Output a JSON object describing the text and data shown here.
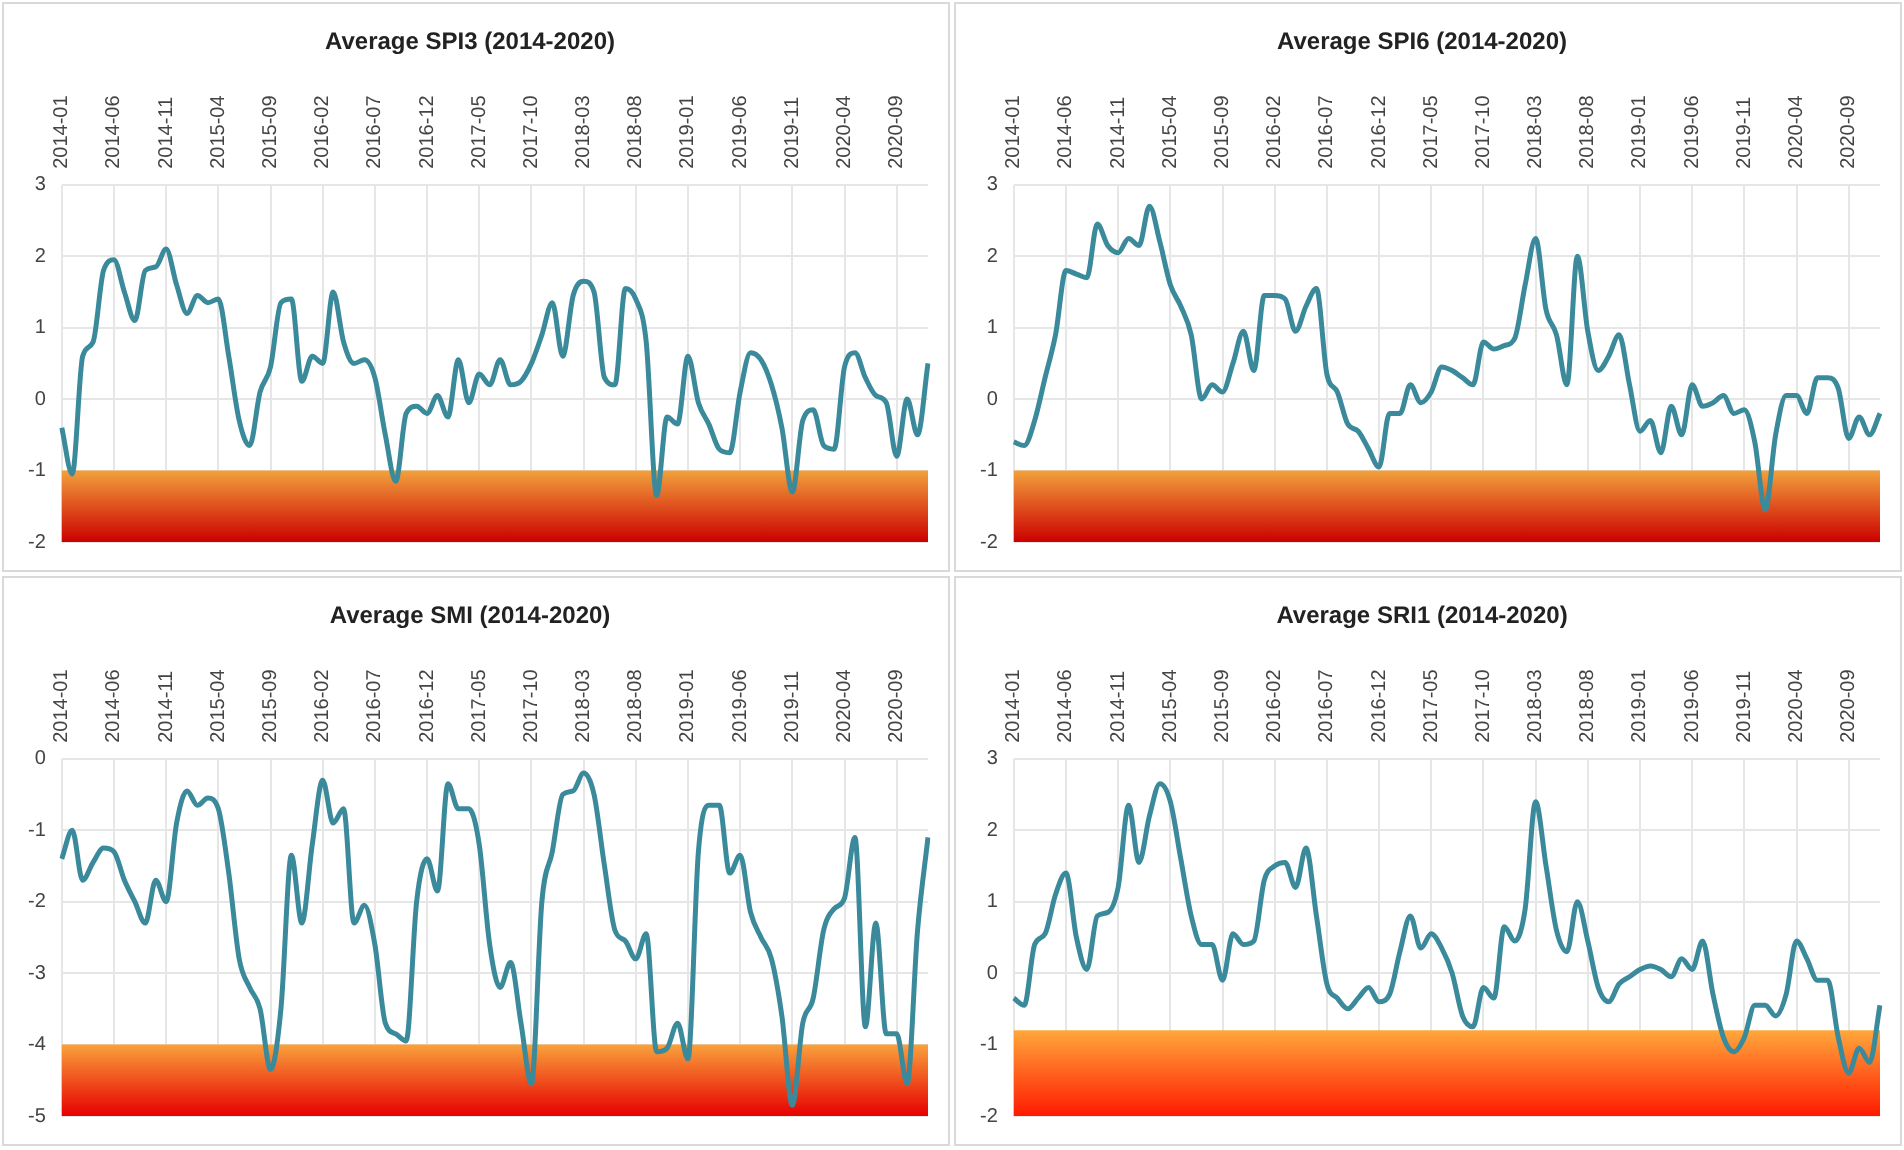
{
  "chart_data": [
    {
      "type": "line",
      "title": "Average SPI3 (2014-2020)",
      "categories": [
        "2014-01",
        null,
        null,
        null,
        null,
        "2014-06",
        null,
        null,
        null,
        null,
        "2014-11",
        null,
        null,
        null,
        null,
        "2015-04",
        null,
        null,
        null,
        null,
        "2015-09",
        null,
        null,
        null,
        null,
        "2016-02",
        null,
        null,
        null,
        null,
        "2016-07",
        null,
        null,
        null,
        null,
        "2016-12",
        null,
        null,
        null,
        null,
        "2017-05",
        null,
        null,
        null,
        null,
        "2017-10",
        null,
        null,
        null,
        null,
        "2018-03",
        null,
        null,
        null,
        null,
        "2018-08",
        null,
        null,
        null,
        null,
        "2019-01",
        null,
        null,
        null,
        null,
        "2019-06",
        null,
        null,
        null,
        null,
        "2019-11",
        null,
        null,
        null,
        null,
        "2020-04",
        null,
        null,
        null,
        null,
        "2020-09",
        null,
        null,
        null
      ],
      "series": [
        {
          "color": "#3b8a9c",
          "values": [
            -0.4,
            -1.05,
            0.6,
            0.8,
            1.8,
            1.95,
            1.5,
            1.1,
            1.8,
            1.85,
            2.1,
            1.6,
            1.2,
            1.45,
            1.35,
            1.4,
            0.6,
            -0.3,
            -0.65,
            0.1,
            0.45,
            1.35,
            1.4,
            0.25,
            0.6,
            0.5,
            1.5,
            0.8,
            0.5,
            0.55,
            0.3,
            -0.5,
            -1.15,
            -0.2,
            -0.1,
            -0.2,
            0.05,
            -0.25,
            0.55,
            -0.05,
            0.35,
            0.2,
            0.55,
            0.2,
            0.25,
            0.5,
            0.9,
            1.35,
            0.6,
            1.45,
            1.65,
            1.5,
            0.3,
            0.2,
            1.55,
            1.4,
            0.8,
            -1.35,
            -0.25,
            -0.35,
            0.6,
            -0.05,
            -0.35,
            -0.7,
            -0.75,
            0.1,
            0.65,
            0.55,
            0.2,
            -0.4,
            -1.3,
            -0.3,
            -0.15,
            -0.65,
            -0.7,
            0.45,
            0.65,
            0.3,
            0.05,
            -0.05,
            -0.8,
            0.0,
            -0.5,
            0.5
          ]
        }
      ],
      "ylim": [
        -2,
        3
      ],
      "yticks": [
        -2,
        -1,
        0,
        1,
        2,
        3
      ],
      "grid": true,
      "marker": "none",
      "bands": [
        {
          "axis": "y",
          "from": -2,
          "to": -1,
          "color": "#cc0000"
        }
      ]
    },
    {
      "type": "line",
      "title": "Average SPI6 (2014-2020)",
      "categories": [
        "2014-01",
        null,
        null,
        null,
        null,
        "2014-06",
        null,
        null,
        null,
        null,
        "2014-11",
        null,
        null,
        null,
        null,
        "2015-04",
        null,
        null,
        null,
        null,
        "2015-09",
        null,
        null,
        null,
        null,
        "2016-02",
        null,
        null,
        null,
        null,
        "2016-07",
        null,
        null,
        null,
        null,
        "2016-12",
        null,
        null,
        null,
        null,
        "2017-05",
        null,
        null,
        null,
        null,
        "2017-10",
        null,
        null,
        null,
        null,
        "2018-03",
        null,
        null,
        null,
        null,
        "2018-08",
        null,
        null,
        null,
        null,
        "2019-01",
        null,
        null,
        null,
        null,
        "2019-06",
        null,
        null,
        null,
        null,
        "2019-11",
        null,
        null,
        null,
        null,
        "2020-04",
        null,
        null,
        null,
        null,
        "2020-09",
        null,
        null,
        null
      ],
      "series": [
        {
          "color": "#3b8a9c",
          "values": [
            -0.6,
            -0.65,
            -0.3,
            0.3,
            0.9,
            1.8,
            1.75,
            1.7,
            2.45,
            2.15,
            2.05,
            2.25,
            2.15,
            2.7,
            2.2,
            1.6,
            1.3,
            0.9,
            0.0,
            0.2,
            0.1,
            0.5,
            0.95,
            0.4,
            1.45,
            1.45,
            1.4,
            0.95,
            1.3,
            1.55,
            0.35,
            0.1,
            -0.35,
            -0.45,
            -0.7,
            -0.95,
            -0.2,
            -0.2,
            0.2,
            -0.05,
            0.1,
            0.45,
            0.4,
            0.3,
            0.2,
            0.8,
            0.7,
            0.75,
            0.85,
            1.6,
            2.25,
            1.25,
            0.9,
            0.2,
            2.0,
            0.95,
            0.4,
            0.6,
            0.9,
            0.2,
            -0.45,
            -0.3,
            -0.75,
            -0.1,
            -0.5,
            0.2,
            -0.1,
            -0.05,
            0.05,
            -0.2,
            -0.15,
            -0.6,
            -1.55,
            -0.5,
            0.05,
            0.05,
            -0.2,
            0.3,
            0.3,
            0.15,
            -0.55,
            -0.25,
            -0.5,
            -0.2
          ]
        }
      ],
      "ylim": [
        -2,
        3
      ],
      "yticks": [
        -2,
        -1,
        0,
        1,
        2,
        3
      ],
      "grid": true,
      "marker": "none",
      "bands": [
        {
          "axis": "y",
          "from": -2,
          "to": -1,
          "color": "#cc0000"
        }
      ]
    },
    {
      "type": "line",
      "title": "Average SMI (2014-2020)",
      "categories": [
        "2014-01",
        null,
        null,
        null,
        null,
        "2014-06",
        null,
        null,
        null,
        null,
        "2014-11",
        null,
        null,
        null,
        null,
        "2015-04",
        null,
        null,
        null,
        null,
        "2015-09",
        null,
        null,
        null,
        null,
        "2016-02",
        null,
        null,
        null,
        null,
        "2016-07",
        null,
        null,
        null,
        null,
        "2016-12",
        null,
        null,
        null,
        null,
        "2017-05",
        null,
        null,
        null,
        null,
        "2017-10",
        null,
        null,
        null,
        null,
        "2018-03",
        null,
        null,
        null,
        null,
        "2018-08",
        null,
        null,
        null,
        null,
        "2019-01",
        null,
        null,
        null,
        null,
        "2019-06",
        null,
        null,
        null,
        null,
        "2019-11",
        null,
        null,
        null,
        null,
        "2020-04",
        null,
        null,
        null,
        null,
        "2020-09",
        null,
        null,
        null
      ],
      "series": [
        {
          "color": "#3b8a9c",
          "values": [
            -1.4,
            -1.0,
            -1.7,
            -1.45,
            -1.25,
            -1.3,
            -1.7,
            -2.0,
            -2.3,
            -1.7,
            -2.0,
            -0.9,
            -0.45,
            -0.65,
            -0.55,
            -0.7,
            -1.6,
            -2.8,
            -3.2,
            -3.5,
            -4.35,
            -3.5,
            -1.35,
            -2.3,
            -1.2,
            -0.3,
            -0.9,
            -0.7,
            -2.3,
            -2.05,
            -2.6,
            -3.7,
            -3.85,
            -3.95,
            -2.0,
            -1.4,
            -1.85,
            -0.35,
            -0.7,
            -0.7,
            -1.2,
            -2.6,
            -3.2,
            -2.85,
            -3.7,
            -4.55,
            -2.0,
            -1.3,
            -0.5,
            -0.45,
            -0.2,
            -0.5,
            -1.5,
            -2.4,
            -2.55,
            -2.8,
            -2.45,
            -4.1,
            -4.05,
            -3.7,
            -4.2,
            -1.3,
            -0.65,
            -0.65,
            -1.6,
            -1.35,
            -2.15,
            -2.5,
            -2.8,
            -3.6,
            -4.85,
            -3.7,
            -3.35,
            -2.4,
            -2.1,
            -1.95,
            -1.1,
            -3.75,
            -2.3,
            -3.85,
            -3.85,
            -4.55,
            -2.4,
            -1.1
          ]
        }
      ],
      "ylim": [
        -5,
        0
      ],
      "yticks": [
        -5,
        -4,
        -3,
        -2,
        -1,
        0
      ],
      "grid": true,
      "marker": "none",
      "bands": [
        {
          "axis": "y",
          "from": -5,
          "to": -4,
          "color": "#e60000"
        }
      ]
    },
    {
      "type": "line",
      "title": "Average SRI1 (2014-2020)",
      "categories": [
        "2014-01",
        null,
        null,
        null,
        null,
        "2014-06",
        null,
        null,
        null,
        null,
        "2014-11",
        null,
        null,
        null,
        null,
        "2015-04",
        null,
        null,
        null,
        null,
        "2015-09",
        null,
        null,
        null,
        null,
        "2016-02",
        null,
        null,
        null,
        null,
        "2016-07",
        null,
        null,
        null,
        null,
        "2016-12",
        null,
        null,
        null,
        null,
        "2017-05",
        null,
        null,
        null,
        null,
        "2017-10",
        null,
        null,
        null,
        null,
        "2018-03",
        null,
        null,
        null,
        null,
        "2018-08",
        null,
        null,
        null,
        null,
        "2019-01",
        null,
        null,
        null,
        null,
        "2019-06",
        null,
        null,
        null,
        null,
        "2019-11",
        null,
        null,
        null,
        null,
        "2020-04",
        null,
        null,
        null,
        null,
        "2020-09",
        null,
        null,
        null
      ],
      "series": [
        {
          "color": "#3b8a9c",
          "values": [
            -0.35,
            -0.45,
            0.4,
            0.55,
            1.1,
            1.4,
            0.5,
            0.05,
            0.8,
            0.85,
            1.2,
            2.35,
            1.55,
            2.2,
            2.65,
            2.4,
            1.6,
            0.8,
            0.4,
            0.4,
            -0.1,
            0.55,
            0.4,
            0.45,
            1.3,
            1.5,
            1.55,
            1.2,
            1.75,
            0.8,
            -0.15,
            -0.35,
            -0.5,
            -0.35,
            -0.2,
            -0.4,
            -0.3,
            0.3,
            0.8,
            0.35,
            0.55,
            0.35,
            0.0,
            -0.6,
            -0.75,
            -0.2,
            -0.35,
            0.65,
            0.45,
            0.9,
            2.4,
            1.5,
            0.6,
            0.3,
            1.0,
            0.45,
            -0.2,
            -0.4,
            -0.15,
            -0.05,
            0.05,
            0.1,
            0.05,
            -0.05,
            0.2,
            0.05,
            0.45,
            -0.3,
            -0.9,
            -1.1,
            -0.9,
            -0.45,
            -0.45,
            -0.6,
            -0.3,
            0.45,
            0.2,
            -0.1,
            -0.1,
            -0.9,
            -1.4,
            -1.05,
            -1.25,
            -0.45
          ]
        }
      ],
      "ylim": [
        -2,
        3
      ],
      "yticks": [
        -2,
        -1,
        0,
        1,
        2,
        3
      ],
      "grid": true,
      "marker": "none",
      "bands": [
        {
          "axis": "y",
          "from": -2,
          "to": -0.8,
          "color": "#ff1a00"
        }
      ]
    }
  ]
}
